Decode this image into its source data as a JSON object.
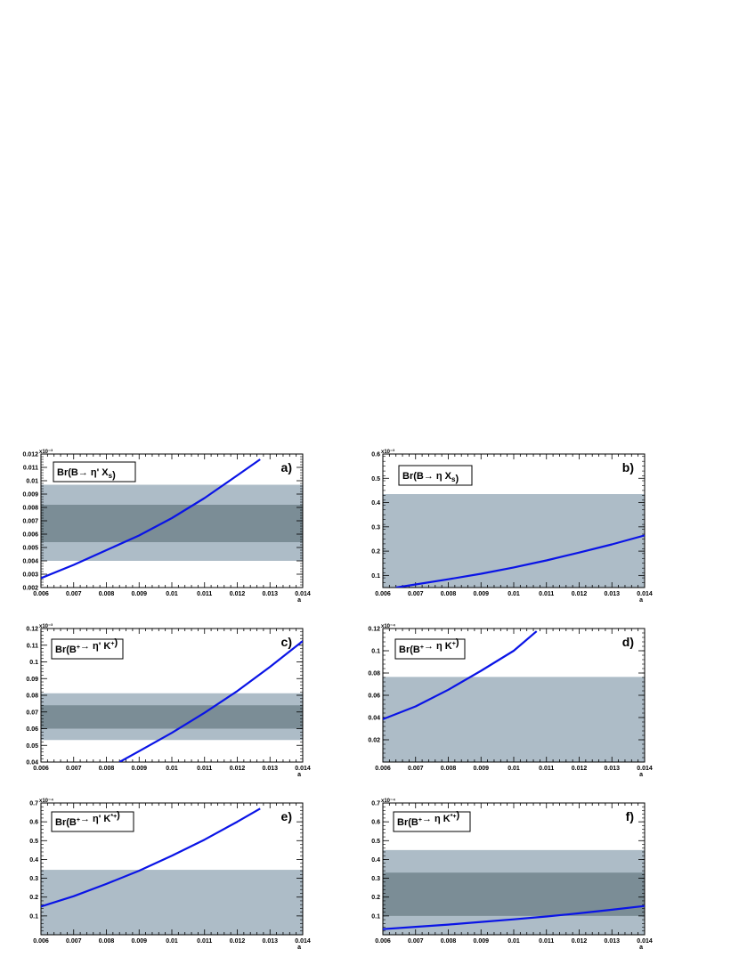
{
  "colors": {
    "outer_band": "#adbcc7",
    "inner_band": "#7b8d96",
    "curve": "#0a14e6",
    "frame": "#000000",
    "background": "#ffffff"
  },
  "chart_data": [
    {
      "type": "line",
      "panel_label": "a)",
      "legend_text": "Br(B→ η' X_s)",
      "legend_parts": [
        [
          "Br(B",
          "n"
        ],
        [
          "→ η' X",
          "n"
        ],
        [
          "s",
          "sub"
        ],
        [
          ")",
          "n"
        ]
      ],
      "xlabel": "a",
      "exponent": "x10⁻³",
      "xlim": [
        0.006,
        0.014
      ],
      "ylim": [
        0.002,
        0.012
      ],
      "xticks": [
        "0.006",
        "0.007",
        "0.008",
        "0.009",
        "0.01",
        "0.011",
        "0.012",
        "0.013",
        "0.014"
      ],
      "yticks": [
        "0.002",
        "0.003",
        "0.004",
        "0.005",
        "0.006",
        "0.007",
        "0.008",
        "0.009",
        "0.01",
        "0.011",
        "0.012"
      ],
      "bands": [
        {
          "name": "outer",
          "range": [
            0.004,
            0.0097
          ]
        },
        {
          "name": "inner",
          "range": [
            0.0054,
            0.0082
          ]
        }
      ],
      "series": [
        {
          "x": [
            0.006,
            0.007,
            0.008,
            0.009,
            0.01,
            0.011,
            0.012,
            0.0127
          ],
          "y": [
            0.0027,
            0.0037,
            0.0048,
            0.0059,
            0.0072,
            0.0087,
            0.0104,
            0.0116
          ]
        }
      ]
    },
    {
      "type": "line",
      "panel_label": "b)",
      "legend_text": "Br(B→ η X_s)",
      "legend_parts": [
        [
          "Br(B",
          "n"
        ],
        [
          "→ η X",
          "n"
        ],
        [
          "s",
          "sub"
        ],
        [
          ")",
          "n"
        ]
      ],
      "xlabel": "a",
      "exponent": "x10⁻³",
      "xlim": [
        0.006,
        0.014
      ],
      "ylim": [
        0.05,
        0.6
      ],
      "xticks": [
        "0.006",
        "0.007",
        "0.008",
        "0.009",
        "0.01",
        "0.011",
        "0.012",
        "0.013",
        "0.014"
      ],
      "yticks": [
        "0.1",
        "0.2",
        "0.3",
        "0.4",
        "0.5",
        "0.6"
      ],
      "bands": [
        {
          "name": "outer",
          "range": [
            0.05,
            0.435
          ]
        }
      ],
      "series": [
        {
          "x": [
            0.0064,
            0.007,
            0.008,
            0.009,
            0.01,
            0.011,
            0.012,
            0.013,
            0.014
          ],
          "y": [
            0.05,
            0.063,
            0.084,
            0.107,
            0.133,
            0.162,
            0.194,
            0.228,
            0.265
          ]
        }
      ]
    },
    {
      "type": "line",
      "panel_label": "c)",
      "legend_text": "Br(B⁺→ η' K⁺)",
      "legend_parts": [
        [
          "Br(B",
          "n"
        ],
        [
          "+",
          "sup"
        ],
        [
          "→ η' K",
          "n"
        ],
        [
          "+",
          "sup"
        ],
        [
          ")",
          "n"
        ]
      ],
      "xlabel": "a",
      "exponent": "x10⁻³",
      "xlim": [
        0.006,
        0.014
      ],
      "ylim": [
        0.04,
        0.12
      ],
      "xticks": [
        "0.006",
        "0.007",
        "0.008",
        "0.009",
        "0.01",
        "0.011",
        "0.012",
        "0.013",
        "0.014"
      ],
      "yticks": [
        "0.04",
        "0.05",
        "0.06",
        "0.07",
        "0.08",
        "0.09",
        "0.1",
        "0.11",
        "0.12"
      ],
      "bands": [
        {
          "name": "outer",
          "range": [
            0.0532,
            0.0812
          ]
        },
        {
          "name": "inner",
          "range": [
            0.06,
            0.074
          ]
        }
      ],
      "series": [
        {
          "x": [
            0.0084,
            0.009,
            0.01,
            0.011,
            0.012,
            0.013,
            0.014
          ],
          "y": [
            0.04,
            0.0465,
            0.0575,
            0.0695,
            0.0825,
            0.097,
            0.1125
          ]
        }
      ]
    },
    {
      "type": "line",
      "panel_label": "d)",
      "legend_text": "Br(B⁺→ η K⁺)",
      "legend_parts": [
        [
          "Br(B",
          "n"
        ],
        [
          "+",
          "sup"
        ],
        [
          "→ η K",
          "n"
        ],
        [
          "+",
          "sup"
        ],
        [
          ")",
          "n"
        ]
      ],
      "xlabel": "a",
      "exponent": "x10⁻⁴",
      "xlim": [
        0.006,
        0.014
      ],
      "ylim": [
        0.0,
        0.12
      ],
      "xticks": [
        "0.006",
        "0.007",
        "0.008",
        "0.009",
        "0.01",
        "0.011",
        "0.012",
        "0.013",
        "0.014"
      ],
      "yticks": [
        "0.02",
        "0.04",
        "0.06",
        "0.08",
        "0.1",
        "0.12"
      ],
      "bands": [
        {
          "name": "outer",
          "range": [
            0.0,
            0.0765
          ]
        }
      ],
      "series": [
        {
          "x": [
            0.006,
            0.007,
            0.008,
            0.009,
            0.01,
            0.0107
          ],
          "y": [
            0.0385,
            0.05,
            0.065,
            0.082,
            0.1,
            0.1175
          ]
        }
      ]
    },
    {
      "type": "line",
      "panel_label": "e)",
      "legend_text": "Br(B⁺→ η' K*⁺)",
      "legend_parts": [
        [
          "Br(B",
          "n"
        ],
        [
          "+",
          "sup"
        ],
        [
          "→ η' K",
          "n"
        ],
        [
          "*+",
          "sup"
        ],
        [
          ")",
          "n"
        ]
      ],
      "xlabel": "a",
      "exponent": "x10⁻⁴",
      "xlim": [
        0.006,
        0.014
      ],
      "ylim": [
        0.0,
        0.7
      ],
      "xticks": [
        "0.006",
        "0.007",
        "0.008",
        "0.009",
        "0.01",
        "0.011",
        "0.012",
        "0.013",
        "0.014"
      ],
      "yticks": [
        "0.1",
        "0.2",
        "0.3",
        "0.4",
        "0.5",
        "0.6",
        "0.7"
      ],
      "bands": [
        {
          "name": "outer",
          "range": [
            0.0,
            0.345
          ]
        }
      ],
      "series": [
        {
          "x": [
            0.006,
            0.007,
            0.008,
            0.009,
            0.01,
            0.011,
            0.012,
            0.0127
          ],
          "y": [
            0.15,
            0.205,
            0.27,
            0.34,
            0.42,
            0.505,
            0.6,
            0.67
          ]
        }
      ]
    },
    {
      "type": "line",
      "panel_label": "f)",
      "legend_text": "Br(B⁺→ η K*⁺)",
      "legend_parts": [
        [
          "Br(B",
          "n"
        ],
        [
          "+",
          "sup"
        ],
        [
          "→ η K",
          "n"
        ],
        [
          "*+",
          "sup"
        ],
        [
          ")",
          "n"
        ]
      ],
      "xlabel": "a",
      "exponent": "x10⁻⁴",
      "xlim": [
        0.006,
        0.014
      ],
      "ylim": [
        0.0,
        0.7
      ],
      "xticks": [
        "0.006",
        "0.007",
        "0.008",
        "0.009",
        "0.01",
        "0.011",
        "0.012",
        "0.013",
        "0.014"
      ],
      "yticks": [
        "0.1",
        "0.2",
        "0.3",
        "0.4",
        "0.5",
        "0.6",
        "0.7"
      ],
      "bands": [
        {
          "name": "outer",
          "range": [
            0.0,
            0.45
          ]
        },
        {
          "name": "inner",
          "range": [
            0.1,
            0.33
          ]
        }
      ],
      "series": [
        {
          "x": [
            0.006,
            0.007,
            0.008,
            0.009,
            0.01,
            0.011,
            0.012,
            0.013,
            0.014
          ],
          "y": [
            0.03,
            0.042,
            0.054,
            0.068,
            0.082,
            0.097,
            0.114,
            0.133,
            0.153
          ]
        }
      ]
    }
  ]
}
